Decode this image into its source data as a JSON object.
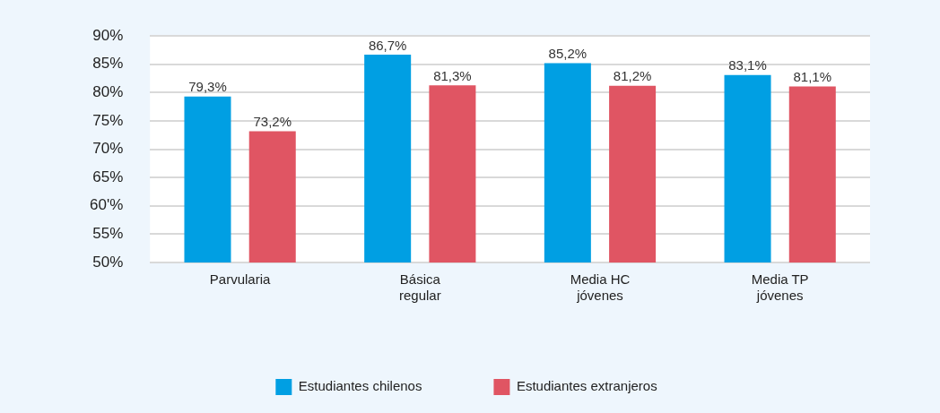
{
  "chart_data": {
    "type": "bar",
    "categories": [
      "Parvularia",
      "Básica regular",
      "Media HC jóvenes",
      "Media TP jóvenes"
    ],
    "series": [
      {
        "name": "Estudiantes chilenos",
        "color": "#009fe3",
        "values": [
          79.3,
          86.7,
          85.2,
          83.1
        ],
        "value_labels": [
          "79,3%",
          "86,7%",
          "85,2%",
          "83,1%"
        ]
      },
      {
        "name": "Estudiantes extranjeros",
        "color": "#e05563",
        "values": [
          73.2,
          81.3,
          81.2,
          81.1
        ],
        "value_labels": [
          "73,2%",
          "81,3%",
          "81,2%",
          "81,1%"
        ]
      }
    ],
    "ylim": [
      50,
      90
    ],
    "yticks": [
      {
        "value": 50,
        "label": "50%"
      },
      {
        "value": 55,
        "label": "55%"
      },
      {
        "value": 60,
        "label": "60'%"
      },
      {
        "value": 65,
        "label": "65%"
      },
      {
        "value": 70,
        "label": "70%"
      },
      {
        "value": 75,
        "label": "75%"
      },
      {
        "value": 80,
        "label": "80%"
      },
      {
        "value": 85,
        "label": "85%"
      },
      {
        "value": 90,
        "label": "90%"
      }
    ],
    "grid": "y",
    "legend": "bottom"
  }
}
